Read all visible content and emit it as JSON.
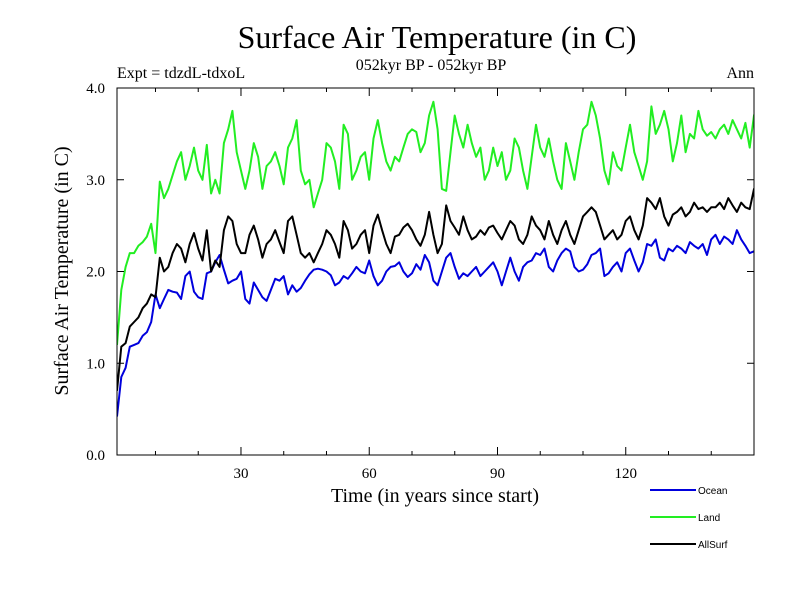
{
  "chart_data": {
    "type": "line",
    "title": "Surface Air Temperature (in C)",
    "subtitle": "052kyr BP - 052kyr BP",
    "experiment_label": "Expt = tdzdL-tdxoL",
    "period_label": "Ann",
    "xlabel": "Time (in years since start)",
    "ylabel": "Surface Air Temperature (in C)",
    "xlim": [
      1,
      150
    ],
    "ylim": [
      0,
      4
    ],
    "x_ticks": [
      30,
      60,
      90,
      120
    ],
    "x_tick_labels": [
      "30",
      "60",
      "90",
      "120"
    ],
    "y_ticks": [
      0,
      1,
      2,
      3,
      4
    ],
    "y_tick_labels": [
      "0.0",
      "1.0",
      "2.0",
      "3.0",
      "4.0"
    ],
    "legend_position": "bottom-right",
    "series": [
      {
        "name": "Ocean",
        "color": "#0000dd",
        "values": [
          0.42,
          0.85,
          0.95,
          1.18,
          1.2,
          1.22,
          1.3,
          1.34,
          1.45,
          1.75,
          1.6,
          1.7,
          1.8,
          1.78,
          1.77,
          1.7,
          1.95,
          2.0,
          1.78,
          1.72,
          1.7,
          1.98,
          2.0,
          2.1,
          2.18,
          2.02,
          1.87,
          1.9,
          1.92,
          2.0,
          1.7,
          1.65,
          1.88,
          1.8,
          1.72,
          1.68,
          1.8,
          1.92,
          1.9,
          1.95,
          1.75,
          1.85,
          1.78,
          1.82,
          1.9,
          1.97,
          2.02,
          2.03,
          2.02,
          2.0,
          1.96,
          1.85,
          1.88,
          1.95,
          1.92,
          1.98,
          2.05,
          2.0,
          1.98,
          2.12,
          1.95,
          1.85,
          1.9,
          2.0,
          2.05,
          2.06,
          2.1,
          2.0,
          1.94,
          1.98,
          2.08,
          2.02,
          2.18,
          2.1,
          1.9,
          1.85,
          2.0,
          2.15,
          2.2,
          2.05,
          1.92,
          1.98,
          1.95,
          2.0,
          2.05,
          1.95,
          2.0,
          2.05,
          2.1,
          2.0,
          1.85,
          2.0,
          2.15,
          2.0,
          1.9,
          2.05,
          2.1,
          2.12,
          2.2,
          2.18,
          2.25,
          2.05,
          2.0,
          2.12,
          2.2,
          2.25,
          2.22,
          2.05,
          2.0,
          2.02,
          2.08,
          2.18,
          2.2,
          2.25,
          1.95,
          1.98,
          2.05,
          2.1,
          2.0,
          2.2,
          2.25,
          2.12,
          2.0,
          2.1,
          2.3,
          2.28,
          2.35,
          2.15,
          2.12,
          2.25,
          2.22,
          2.28,
          2.25,
          2.2,
          2.32,
          2.28,
          2.25,
          2.3,
          2.18,
          2.35,
          2.4,
          2.3,
          2.38,
          2.35,
          2.3,
          2.45,
          2.35,
          2.28,
          2.2,
          2.22
        ]
      },
      {
        "name": "Land",
        "color": "#22ee22",
        "values": [
          1.2,
          1.8,
          2.05,
          2.2,
          2.2,
          2.28,
          2.32,
          2.38,
          2.52,
          2.2,
          2.98,
          2.8,
          2.9,
          3.05,
          3.2,
          3.3,
          3.0,
          3.15,
          3.35,
          3.1,
          3.0,
          3.38,
          2.85,
          3.0,
          2.85,
          3.4,
          3.55,
          3.75,
          3.3,
          3.1,
          2.9,
          3.1,
          3.4,
          3.25,
          2.9,
          3.15,
          3.2,
          3.3,
          3.15,
          2.95,
          3.35,
          3.45,
          3.65,
          3.1,
          2.95,
          3.0,
          2.7,
          2.85,
          3.0,
          3.4,
          3.35,
          3.2,
          2.9,
          3.6,
          3.5,
          3.0,
          3.1,
          3.25,
          3.3,
          3.0,
          3.45,
          3.65,
          3.4,
          3.2,
          3.1,
          3.25,
          3.2,
          3.35,
          3.5,
          3.55,
          3.52,
          3.3,
          3.4,
          3.7,
          3.85,
          3.55,
          2.9,
          2.88,
          3.3,
          3.7,
          3.5,
          3.35,
          3.6,
          3.4,
          3.25,
          3.35,
          3.0,
          3.1,
          3.35,
          3.15,
          3.3,
          3.0,
          3.1,
          3.45,
          3.35,
          3.1,
          2.9,
          3.25,
          3.6,
          3.35,
          3.25,
          3.45,
          3.2,
          3.0,
          2.9,
          3.4,
          3.2,
          3.0,
          3.3,
          3.55,
          3.6,
          3.85,
          3.7,
          3.45,
          3.1,
          2.95,
          3.3,
          3.15,
          3.1,
          3.35,
          3.6,
          3.3,
          3.15,
          3.0,
          3.2,
          3.8,
          3.5,
          3.6,
          3.75,
          3.55,
          3.2,
          3.4,
          3.7,
          3.3,
          3.5,
          3.45,
          3.75,
          3.55,
          3.48,
          3.52,
          3.45,
          3.55,
          3.6,
          3.5,
          3.65,
          3.55,
          3.45,
          3.62,
          3.35,
          3.7,
          3.85,
          3.6
        ]
      },
      {
        "name": "AllSurf",
        "color": "#000000",
        "values": [
          0.7,
          1.18,
          1.22,
          1.4,
          1.45,
          1.5,
          1.6,
          1.65,
          1.75,
          1.72,
          2.15,
          2.0,
          2.05,
          2.2,
          2.3,
          2.25,
          2.1,
          2.3,
          2.42,
          2.25,
          2.12,
          2.45,
          2.0,
          2.12,
          2.05,
          2.45,
          2.6,
          2.55,
          2.3,
          2.2,
          2.2,
          2.4,
          2.5,
          2.35,
          2.15,
          2.3,
          2.35,
          2.45,
          2.32,
          2.2,
          2.55,
          2.6,
          2.4,
          2.2,
          2.15,
          2.2,
          2.1,
          2.2,
          2.3,
          2.45,
          2.4,
          2.3,
          2.15,
          2.55,
          2.45,
          2.25,
          2.3,
          2.4,
          2.45,
          2.2,
          2.5,
          2.62,
          2.45,
          2.3,
          2.2,
          2.38,
          2.4,
          2.48,
          2.52,
          2.45,
          2.35,
          2.28,
          2.4,
          2.65,
          2.4,
          2.2,
          2.3,
          2.72,
          2.55,
          2.48,
          2.4,
          2.6,
          2.45,
          2.35,
          2.38,
          2.45,
          2.4,
          2.48,
          2.5,
          2.42,
          2.35,
          2.45,
          2.55,
          2.5,
          2.35,
          2.3,
          2.4,
          2.6,
          2.5,
          2.45,
          2.35,
          2.55,
          2.4,
          2.3,
          2.45,
          2.55,
          2.4,
          2.3,
          2.45,
          2.6,
          2.65,
          2.7,
          2.65,
          2.5,
          2.35,
          2.4,
          2.45,
          2.35,
          2.4,
          2.55,
          2.6,
          2.45,
          2.35,
          2.5,
          2.8,
          2.75,
          2.68,
          2.8,
          2.6,
          2.5,
          2.62,
          2.65,
          2.7,
          2.6,
          2.65,
          2.75,
          2.68,
          2.7,
          2.65,
          2.7,
          2.7,
          2.75,
          2.68,
          2.8,
          2.72,
          2.65,
          2.75,
          2.7,
          2.68,
          2.9,
          2.75,
          2.62
        ]
      }
    ]
  }
}
